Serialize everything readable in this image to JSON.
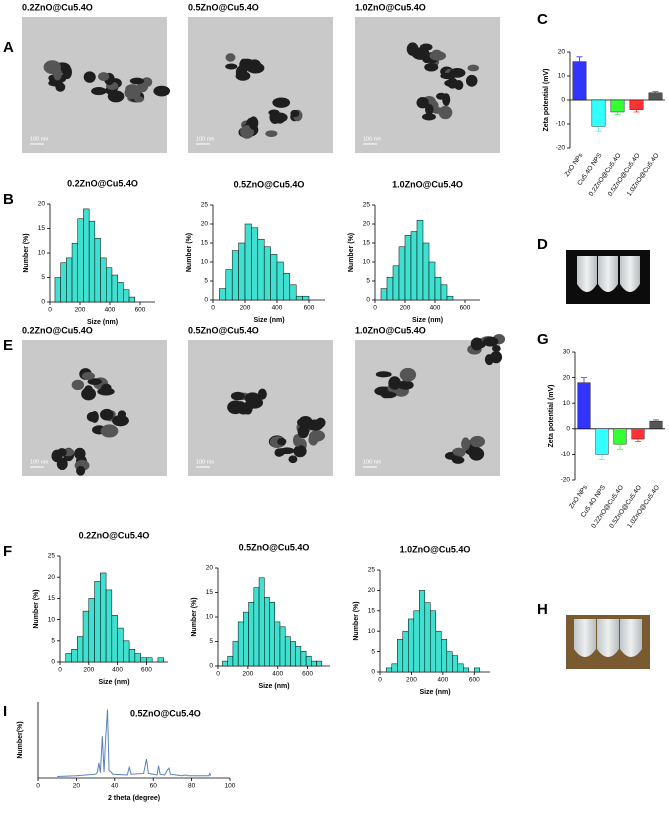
{
  "figure": {
    "panel_labels": [
      "A",
      "B",
      "C",
      "D",
      "E",
      "F",
      "G",
      "H",
      "I"
    ],
    "tem_images": [
      {
        "title": "0.2ZnO@Cu5.4O",
        "scale_bar": "100 nm"
      },
      {
        "title": "0.5ZnO@Cu5.4O",
        "scale_bar": "100 nm"
      },
      {
        "title": "1.0ZnO@Cu5.4O",
        "scale_bar": "100 nm"
      },
      {
        "title": "0.2ZnO@Cu5.4O",
        "scale_bar": "100 nm"
      },
      {
        "title": "0.5ZnO@Cu5.4O",
        "scale_bar": "100 nm"
      },
      {
        "title": "1.0ZnO@Cu5.4O",
        "scale_bar": "100 nm"
      }
    ]
  },
  "chart_data": [
    {
      "type": "bar",
      "ylabel": "Zeta potential (mV)",
      "categories": [
        "ZnO NPs",
        "Cu5.4O NPS",
        "0.2ZnO@Cu5.4O",
        "0.5ZnO@Cu5.4O",
        "1.0ZnO@Cu5.4O"
      ],
      "values": [
        16,
        -11,
        -5,
        -4,
        3
      ],
      "errors": [
        2,
        2,
        1,
        1,
        0.5
      ],
      "colors": [
        "#3333ff",
        "#33ffff",
        "#33ff33",
        "#ff3333",
        "#555555"
      ],
      "ylim": [
        -20,
        20
      ],
      "yticks": [
        -20,
        -10,
        0,
        10,
        20
      ]
    },
    {
      "type": "histogram",
      "title": "0.2ZnO@Cu5.4O",
      "xlabel": "Size (nm)",
      "ylabel": "Number (%)",
      "bins": [
        33,
        71,
        109,
        147,
        185,
        223,
        261,
        299,
        337,
        375,
        413,
        451,
        489,
        527,
        565
      ],
      "values": [
        5,
        8,
        9,
        12,
        17,
        19,
        16.5,
        13,
        9,
        7,
        5.5,
        4,
        2.5,
        1
      ],
      "color": "#40e0d0",
      "xlim": [
        0,
        700
      ],
      "xticks": [
        0,
        200,
        400,
        600
      ],
      "ylim": [
        0,
        20
      ],
      "yticks": [
        0,
        5,
        10,
        15,
        20
      ]
    },
    {
      "type": "histogram",
      "title": "0.5ZnO@Cu5.4O",
      "xlabel": "Size (nm)",
      "ylabel": "Number (%)",
      "bins": [
        40,
        80,
        120,
        160,
        200,
        240,
        280,
        320,
        360,
        400,
        440,
        480,
        520,
        560,
        600
      ],
      "values": [
        3,
        8,
        13,
        15,
        20,
        19,
        16,
        14,
        12,
        10,
        7,
        4,
        1,
        1
      ],
      "color": "#40e0d0",
      "xlim": [
        0,
        700
      ],
      "xticks": [
        0,
        200,
        400,
        600
      ],
      "ylim": [
        0,
        25
      ],
      "yticks": [
        0,
        5,
        10,
        15,
        20,
        25
      ]
    },
    {
      "type": "histogram",
      "title": "1.0ZnO@Cu5.4O",
      "xlabel": "Size (nm)",
      "ylabel": "Number (%)",
      "bins": [
        40,
        80,
        120,
        160,
        200,
        240,
        280,
        320,
        360,
        400,
        440,
        480,
        520
      ],
      "values": [
        3,
        6,
        9,
        14,
        17,
        18,
        21,
        15,
        10,
        6,
        4,
        1
      ],
      "color": "#40e0d0",
      "xlim": [
        0,
        700
      ],
      "xticks": [
        0,
        200,
        400,
        600
      ],
      "ylim": [
        0,
        25
      ],
      "yticks": [
        0,
        5,
        10,
        15,
        20,
        25
      ]
    },
    {
      "type": "bar",
      "ylabel": "Zeta potential (mV)",
      "categories": [
        "ZnO NPs",
        "Cu5.4O NPS",
        "0.2ZnO@Cu5.4O",
        "0.5ZnO@Cu5.4O",
        "1.0ZnO@Cu5.4O"
      ],
      "values": [
        18,
        -10,
        -6,
        -4,
        3
      ],
      "errors": [
        2,
        2,
        2,
        1,
        0.5
      ],
      "colors": [
        "#3333ff",
        "#33ffff",
        "#33ff33",
        "#ff3333",
        "#555555"
      ],
      "ylim": [
        -20,
        30
      ],
      "yticks": [
        -20,
        -10,
        0,
        10,
        20,
        30
      ]
    },
    {
      "type": "histogram",
      "title": "0.2ZnO@Cu5.4O",
      "xlabel": "Size (nm)",
      "ylabel": "Number (%)",
      "bins": [
        40,
        80,
        120,
        160,
        200,
        240,
        280,
        320,
        360,
        400,
        440,
        480,
        520,
        560,
        600,
        640,
        680,
        720
      ],
      "values": [
        2,
        3,
        6,
        12,
        15,
        19,
        21,
        17,
        11,
        8,
        5,
        3,
        2,
        1,
        1,
        0,
        1
      ],
      "color": "#40e0d0",
      "xlim": [
        0,
        750
      ],
      "xticks": [
        0,
        200,
        400,
        600
      ],
      "ylim": [
        0,
        25
      ],
      "yticks": [
        0,
        5,
        10,
        15,
        20,
        25
      ]
    },
    {
      "type": "histogram",
      "title": "0.5ZnO@Cu5.4O",
      "xlabel": "Size (nm)",
      "ylabel": "Number (%)",
      "bins": [
        30,
        65,
        100,
        135,
        170,
        205,
        240,
        275,
        310,
        345,
        380,
        415,
        450,
        485,
        520,
        555,
        590,
        625,
        660,
        695
      ],
      "values": [
        1,
        2,
        5,
        9,
        11,
        13,
        16,
        18,
        14,
        13,
        9,
        8,
        6,
        5,
        4,
        3,
        2,
        1,
        1
      ],
      "color": "#40e0d0",
      "xlim": [
        0,
        750
      ],
      "xticks": [
        0,
        200,
        400,
        600
      ],
      "ylim": [
        0,
        20
      ],
      "yticks": [
        0,
        5,
        10,
        15,
        20
      ]
    },
    {
      "type": "histogram",
      "title": "1.0ZnO@Cu5.4O",
      "xlabel": "Size (nm)",
      "ylabel": "Number (%)",
      "bins": [
        40,
        75,
        110,
        145,
        180,
        215,
        250,
        285,
        320,
        355,
        390,
        425,
        460,
        495,
        530,
        565,
        600,
        635
      ],
      "values": [
        1,
        2,
        8,
        10,
        13,
        15,
        20,
        17,
        15,
        10,
        8,
        5,
        4,
        2,
        1,
        0,
        1
      ],
      "color": "#40e0d0",
      "xlim": [
        0,
        700
      ],
      "xticks": [
        0,
        200,
        400,
        600
      ],
      "ylim": [
        0,
        25
      ],
      "yticks": [
        0,
        5,
        10,
        15,
        20,
        25
      ]
    },
    {
      "type": "line",
      "title": "0.5ZnO@Cu5.4O",
      "xlabel": "2 theta (degree)",
      "ylabel": "Number(%)",
      "color": "#5b7fc7",
      "x": [
        10,
        20,
        30,
        31,
        31.7,
        32.5,
        33.5,
        34.4,
        35.2,
        36.2,
        37,
        38,
        39,
        46.5,
        47.5,
        48.5,
        55,
        56.5,
        57.5,
        60,
        62,
        62.8,
        63.6,
        66,
        67.5,
        68.2,
        69,
        72,
        75,
        77,
        78,
        80,
        86,
        89,
        89.5,
        90
      ],
      "values": [
        2,
        3,
        5,
        8,
        20,
        7,
        55,
        8,
        50,
        90,
        10,
        8,
        5,
        4,
        14,
        5,
        6,
        25,
        6,
        5,
        4,
        16,
        5,
        4,
        11,
        13,
        5,
        4,
        3,
        4,
        3,
        3,
        3,
        3,
        6,
        3
      ],
      "xlim": [
        0,
        100
      ],
      "xticks": [
        0,
        20,
        40,
        60,
        80,
        100
      ],
      "ylim": [
        0,
        100
      ]
    }
  ]
}
